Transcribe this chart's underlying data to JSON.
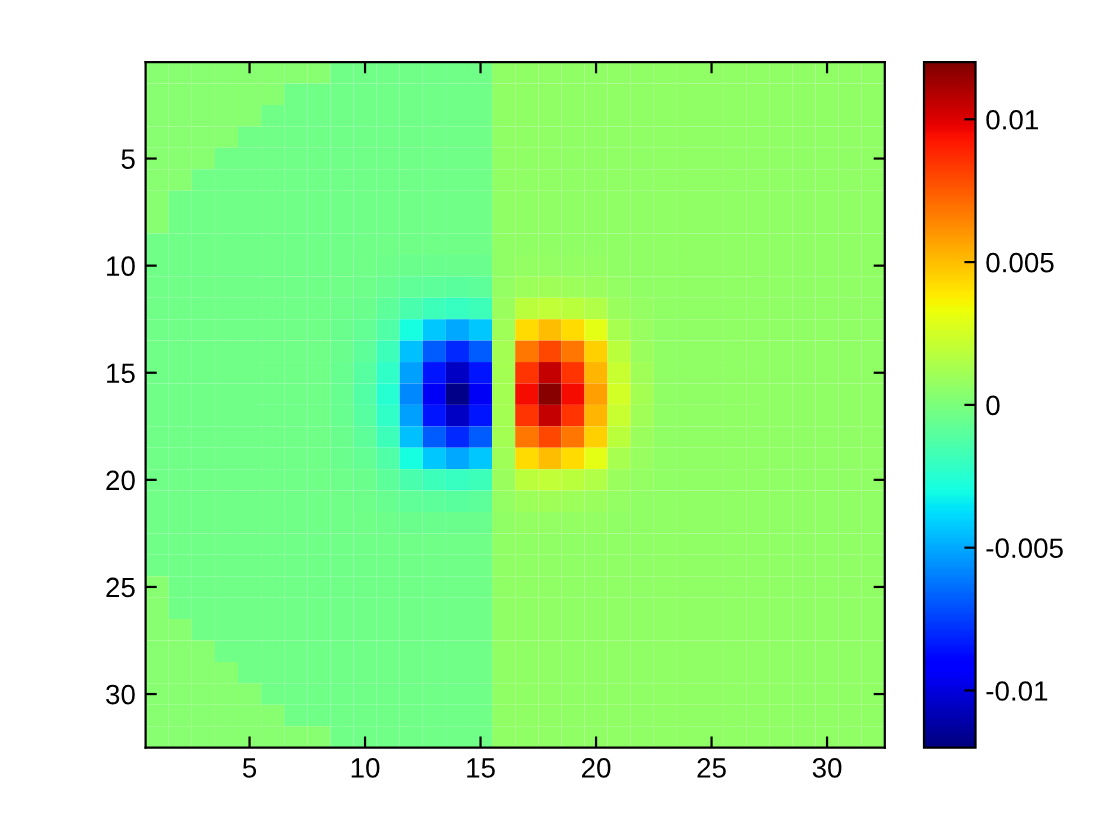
{
  "chart_data": {
    "type": "heatmap",
    "x": [
      1,
      2,
      3,
      4,
      5,
      6,
      7,
      8,
      9,
      10,
      11,
      12,
      13,
      14,
      15,
      16,
      17,
      18,
      19,
      20,
      21,
      22,
      23,
      24,
      25,
      26,
      27,
      28,
      29,
      30,
      31,
      32
    ],
    "y": [
      1,
      2,
      3,
      4,
      5,
      6,
      7,
      8,
      9,
      10,
      11,
      12,
      13,
      14,
      15,
      16,
      17,
      18,
      19,
      20,
      21,
      22,
      23,
      24,
      25,
      26,
      27,
      28,
      29,
      30,
      31,
      32
    ],
    "xlim": [
      0.5,
      32.5
    ],
    "ylim": [
      32.5,
      0.5
    ],
    "xticks": [
      5,
      10,
      15,
      20,
      25,
      30
    ],
    "yticks": [
      5,
      10,
      15,
      20,
      25,
      30
    ],
    "clim": [
      -0.012,
      0.012
    ],
    "cticks": [
      -0.01,
      -0.005,
      0,
      0.005,
      0.01
    ],
    "cells": [
      [
        0.0003,
        0.0003,
        0.0003,
        0.0003,
        0.0003,
        0.0003,
        0.0003,
        0.0003,
        -0.0003,
        -0.0003,
        -0.0003,
        -0.0003,
        -0.0003,
        -0.0003,
        -0.0003,
        0.0006,
        0.0006,
        0.0006,
        0.0006,
        0.0006,
        0.0006,
        0.0006,
        0.0006,
        0.0006,
        0.0006,
        0.0006,
        0.0006,
        0.0006,
        0.0006,
        0.0006,
        0.0006,
        0.0006
      ],
      [
        0.0003,
        0.0003,
        0.0003,
        0.0003,
        0.0003,
        0.0003,
        -0.0003,
        -0.0003,
        -0.0003,
        -0.0003,
        -0.0003,
        -0.0003,
        -0.0003,
        -0.0003,
        -0.0003,
        0.0006,
        0.0006,
        0.0006,
        0.0006,
        0.0006,
        0.0006,
        0.0006,
        0.0006,
        0.0006,
        0.0006,
        0.0006,
        0.0006,
        0.0006,
        0.0006,
        0.0006,
        0.0006,
        0.0006
      ],
      [
        0.0003,
        0.0003,
        0.0003,
        0.0003,
        0.0003,
        -0.0003,
        -0.0003,
        -0.0003,
        -0.0003,
        -0.0003,
        -0.0003,
        -0.0003,
        -0.0003,
        -0.0003,
        -0.0003,
        0.0006,
        0.0006,
        0.0006,
        0.0006,
        0.0006,
        0.0006,
        0.0006,
        0.0006,
        0.0006,
        0.0006,
        0.0006,
        0.0006,
        0.0006,
        0.0006,
        0.0006,
        0.0006,
        0.0006
      ],
      [
        0.0003,
        0.0003,
        0.0003,
        0.0003,
        -0.0003,
        -0.0003,
        -0.0003,
        -0.0003,
        -0.0003,
        -0.0003,
        -0.0003,
        -0.0003,
        -0.0003,
        -0.0003,
        -0.0003,
        0.0006,
        0.0006,
        0.0006,
        0.0006,
        0.0006,
        0.0006,
        0.0006,
        0.0006,
        0.0006,
        0.0006,
        0.0006,
        0.0006,
        0.0006,
        0.0006,
        0.0006,
        0.0006,
        0.0006
      ],
      [
        0.0003,
        0.0003,
        0.0003,
        -0.0003,
        -0.0003,
        -0.0003,
        -0.0003,
        -0.0003,
        -0.0003,
        -0.0003,
        -0.0003,
        -0.0003,
        -0.0003,
        -0.0003,
        -0.0003,
        0.0006,
        0.0006,
        0.0006,
        0.0006,
        0.0006,
        0.0006,
        0.0006,
        0.0006,
        0.0006,
        0.0006,
        0.0006,
        0.0006,
        0.0006,
        0.0006,
        0.0006,
        0.0006,
        0.0006
      ],
      [
        0.0003,
        0.0003,
        -0.0003,
        -0.0003,
        -0.0003,
        -0.0003,
        -0.0003,
        -0.0003,
        -0.0003,
        -0.0003,
        -0.0003,
        -0.0003,
        -0.0003,
        -0.0003,
        -0.0003,
        0.0006,
        0.0006,
        0.0006,
        0.0006,
        0.0006,
        0.0006,
        0.0006,
        0.0006,
        0.0006,
        0.0006,
        0.0006,
        0.0006,
        0.0006,
        0.0006,
        0.0006,
        0.0006,
        0.0006
      ],
      [
        0.0003,
        -0.0003,
        -0.0003,
        -0.0003,
        -0.0003,
        -0.0003,
        -0.0003,
        -0.0003,
        -0.0003,
        -0.0003,
        -0.0003,
        -0.0003,
        -0.0003,
        -0.0003,
        -0.0003,
        0.0006,
        0.0006,
        0.0006,
        0.0006,
        0.0006,
        0.0006,
        0.0006,
        0.0006,
        0.0006,
        0.0006,
        0.0006,
        0.0006,
        0.0006,
        0.0006,
        0.0006,
        0.0006,
        0.0006
      ],
      [
        0.0003,
        -0.0003,
        -0.0003,
        -0.0003,
        -0.0003,
        -0.0003,
        -0.0003,
        -0.0003,
        -0.0003,
        -0.0003,
        -0.0003,
        -0.0003,
        -0.0003,
        -0.0003,
        -0.0003,
        0.0006,
        0.0006,
        0.0006,
        0.0006,
        0.0006,
        0.0006,
        0.0006,
        0.0006,
        0.0006,
        0.0006,
        0.0006,
        0.0006,
        0.0006,
        0.0006,
        0.0006,
        0.0006,
        0.0006
      ],
      [
        -0.0003,
        -0.0003,
        -0.0003,
        -0.0003,
        -0.0003,
        -0.0003,
        -0.0003,
        -0.0003,
        -0.0003,
        -0.0003,
        -0.0003,
        -0.0003,
        -0.0003,
        -0.0003,
        -0.0003,
        0.0006,
        0.0006,
        0.0006,
        0.0006,
        0.0006,
        0.0006,
        0.0006,
        0.0006,
        0.0006,
        0.0006,
        0.0006,
        0.0006,
        0.0006,
        0.0006,
        0.0006,
        0.0006,
        0.0006
      ],
      [
        -0.0003,
        -0.0003,
        -0.0003,
        -0.0003,
        -0.0003,
        -0.0003,
        -0.0003,
        -0.0003,
        -0.0003,
        -0.0003,
        -0.0004,
        -0.0005,
        -0.0005,
        -0.0005,
        -0.0005,
        0.0006,
        0.0007,
        0.0007,
        0.0007,
        0.0007,
        0.0006,
        0.0006,
        0.0006,
        0.0006,
        0.0006,
        0.0006,
        0.0006,
        0.0006,
        0.0006,
        0.0006,
        0.0006,
        0.0006
      ],
      [
        -0.0003,
        -0.0003,
        -0.0003,
        -0.0003,
        -0.0003,
        -0.0003,
        -0.0003,
        -0.0003,
        -0.0003,
        -0.0004,
        -0.0006,
        -0.0008,
        -0.0009,
        -0.001,
        -0.0009,
        0.0007,
        0.001,
        0.0011,
        0.001,
        0.0009,
        0.0007,
        0.0006,
        0.0006,
        0.0006,
        0.0006,
        0.0006,
        0.0006,
        0.0006,
        0.0006,
        0.0006,
        0.0006,
        0.0006
      ],
      [
        -0.0003,
        -0.0003,
        -0.0003,
        -0.0003,
        -0.0003,
        -0.0003,
        -0.0003,
        -0.0003,
        -0.0004,
        -0.0005,
        -0.0009,
        -0.0015,
        -0.0018,
        -0.002,
        -0.0018,
        0.0009,
        0.0018,
        0.002,
        0.0018,
        0.0015,
        0.0009,
        0.0007,
        0.0006,
        0.0006,
        0.0006,
        0.0006,
        0.0006,
        0.0006,
        0.0006,
        0.0006,
        0.0006,
        0.0006
      ],
      [
        -0.0003,
        -0.0003,
        -0.0003,
        -0.0003,
        -0.0003,
        -0.0003,
        -0.0003,
        -0.0003,
        -0.0005,
        -0.0007,
        -0.0013,
        -0.003,
        -0.0043,
        -0.005,
        -0.0043,
        0.0011,
        0.0043,
        0.005,
        0.0043,
        0.003,
        0.0013,
        0.0008,
        0.0006,
        0.0006,
        0.0006,
        0.0006,
        0.0006,
        0.0006,
        0.0006,
        0.0006,
        0.0006,
        0.0006
      ],
      [
        -0.0003,
        -0.0003,
        -0.0003,
        -0.0003,
        -0.0003,
        -0.0003,
        -0.0003,
        -0.0003,
        -0.0005,
        -0.0009,
        -0.0018,
        -0.0045,
        -0.0068,
        -0.008,
        -0.0068,
        0.0012,
        0.0068,
        0.008,
        0.0068,
        0.0045,
        0.0018,
        0.0009,
        0.0006,
        0.0006,
        0.0006,
        0.0006,
        0.0006,
        0.0006,
        0.0006,
        0.0006,
        0.0006,
        0.0006
      ],
      [
        -0.0003,
        -0.0003,
        -0.0003,
        -0.0003,
        -0.0003,
        -0.0003,
        -0.0003,
        -0.0003,
        -0.0006,
        -0.0011,
        -0.0022,
        -0.0052,
        -0.0085,
        -0.0105,
        -0.0085,
        0.0012,
        0.0085,
        0.0105,
        0.0085,
        0.0052,
        0.0022,
        0.0011,
        0.0006,
        0.0006,
        0.0006,
        0.0006,
        0.0006,
        0.0006,
        0.0006,
        0.0006,
        0.0006,
        0.0006
      ],
      [
        -0.0003,
        -0.0003,
        -0.0003,
        -0.0003,
        -0.0003,
        -0.0003,
        -0.0003,
        -0.0003,
        -0.0006,
        -0.0012,
        -0.0025,
        -0.0058,
        -0.0095,
        -0.0118,
        -0.0095,
        0.0012,
        0.0095,
        0.0118,
        0.0095,
        0.0058,
        0.0025,
        0.0012,
        0.0006,
        0.0006,
        0.0006,
        0.0006,
        0.0006,
        0.0006,
        0.0006,
        0.0006,
        0.0006,
        0.0006
      ],
      [
        -0.0003,
        -0.0003,
        -0.0003,
        -0.0003,
        -0.0003,
        -0.0003,
        -0.0003,
        -0.0003,
        -0.0006,
        -0.0011,
        -0.0022,
        -0.0052,
        -0.0085,
        -0.0105,
        -0.0085,
        0.0012,
        0.0085,
        0.0105,
        0.0085,
        0.0052,
        0.0022,
        0.0011,
        0.0006,
        0.0006,
        0.0006,
        0.0006,
        0.0006,
        0.0006,
        0.0006,
        0.0006,
        0.0006,
        0.0006
      ],
      [
        -0.0003,
        -0.0003,
        -0.0003,
        -0.0003,
        -0.0003,
        -0.0003,
        -0.0003,
        -0.0003,
        -0.0005,
        -0.0009,
        -0.0018,
        -0.0045,
        -0.0068,
        -0.008,
        -0.0068,
        0.0012,
        0.0068,
        0.008,
        0.0068,
        0.0045,
        0.0018,
        0.0009,
        0.0006,
        0.0006,
        0.0006,
        0.0006,
        0.0006,
        0.0006,
        0.0006,
        0.0006,
        0.0006,
        0.0006
      ],
      [
        -0.0003,
        -0.0003,
        -0.0003,
        -0.0003,
        -0.0003,
        -0.0003,
        -0.0003,
        -0.0003,
        -0.0005,
        -0.0007,
        -0.0013,
        -0.003,
        -0.0043,
        -0.005,
        -0.0043,
        0.0011,
        0.0043,
        0.005,
        0.0043,
        0.003,
        0.0013,
        0.0008,
        0.0006,
        0.0006,
        0.0006,
        0.0006,
        0.0006,
        0.0006,
        0.0006,
        0.0006,
        0.0006,
        0.0006
      ],
      [
        -0.0003,
        -0.0003,
        -0.0003,
        -0.0003,
        -0.0003,
        -0.0003,
        -0.0003,
        -0.0003,
        -0.0004,
        -0.0005,
        -0.0009,
        -0.0015,
        -0.0018,
        -0.002,
        -0.0018,
        0.0009,
        0.0018,
        0.002,
        0.0018,
        0.0015,
        0.0009,
        0.0007,
        0.0006,
        0.0006,
        0.0006,
        0.0006,
        0.0006,
        0.0006,
        0.0006,
        0.0006,
        0.0006,
        0.0006
      ],
      [
        -0.0003,
        -0.0003,
        -0.0003,
        -0.0003,
        -0.0003,
        -0.0003,
        -0.0003,
        -0.0003,
        -0.0003,
        -0.0004,
        -0.0006,
        -0.0008,
        -0.0009,
        -0.001,
        -0.0009,
        0.0007,
        0.001,
        0.0011,
        0.001,
        0.0009,
        0.0007,
        0.0006,
        0.0006,
        0.0006,
        0.0006,
        0.0006,
        0.0006,
        0.0006,
        0.0006,
        0.0006,
        0.0006,
        0.0006
      ],
      [
        -0.0003,
        -0.0003,
        -0.0003,
        -0.0003,
        -0.0003,
        -0.0003,
        -0.0003,
        -0.0003,
        -0.0003,
        -0.0003,
        -0.0004,
        -0.0005,
        -0.0005,
        -0.0005,
        -0.0005,
        0.0006,
        0.0007,
        0.0007,
        0.0007,
        0.0007,
        0.0006,
        0.0006,
        0.0006,
        0.0006,
        0.0006,
        0.0006,
        0.0006,
        0.0006,
        0.0006,
        0.0006,
        0.0006,
        0.0006
      ],
      [
        -0.0003,
        -0.0003,
        -0.0003,
        -0.0003,
        -0.0003,
        -0.0003,
        -0.0003,
        -0.0003,
        -0.0003,
        -0.0003,
        -0.0003,
        -0.0003,
        -0.0003,
        -0.0003,
        -0.0003,
        0.0006,
        0.0006,
        0.0006,
        0.0006,
        0.0006,
        0.0006,
        0.0006,
        0.0006,
        0.0006,
        0.0006,
        0.0006,
        0.0006,
        0.0006,
        0.0006,
        0.0006,
        0.0006,
        0.0006
      ],
      [
        -0.0003,
        -0.0003,
        -0.0003,
        -0.0003,
        -0.0003,
        -0.0003,
        -0.0003,
        -0.0003,
        -0.0003,
        -0.0003,
        -0.0003,
        -0.0003,
        -0.0003,
        -0.0003,
        -0.0003,
        0.0006,
        0.0006,
        0.0006,
        0.0006,
        0.0006,
        0.0006,
        0.0006,
        0.0006,
        0.0006,
        0.0006,
        0.0006,
        0.0006,
        0.0006,
        0.0006,
        0.0006,
        0.0006,
        0.0006
      ],
      [
        0.0003,
        -0.0003,
        -0.0003,
        -0.0003,
        -0.0003,
        -0.0003,
        -0.0003,
        -0.0003,
        -0.0003,
        -0.0003,
        -0.0003,
        -0.0003,
        -0.0003,
        -0.0003,
        -0.0003,
        0.0006,
        0.0006,
        0.0006,
        0.0006,
        0.0006,
        0.0006,
        0.0006,
        0.0006,
        0.0006,
        0.0006,
        0.0006,
        0.0006,
        0.0006,
        0.0006,
        0.0006,
        0.0006,
        0.0006
      ],
      [
        0.0003,
        -0.0003,
        -0.0003,
        -0.0003,
        -0.0003,
        -0.0003,
        -0.0003,
        -0.0003,
        -0.0003,
        -0.0003,
        -0.0003,
        -0.0003,
        -0.0003,
        -0.0003,
        -0.0003,
        0.0006,
        0.0006,
        0.0006,
        0.0006,
        0.0006,
        0.0006,
        0.0006,
        0.0006,
        0.0006,
        0.0006,
        0.0006,
        0.0006,
        0.0006,
        0.0006,
        0.0006,
        0.0006,
        0.0006
      ],
      [
        0.0003,
        0.0003,
        -0.0003,
        -0.0003,
        -0.0003,
        -0.0003,
        -0.0003,
        -0.0003,
        -0.0003,
        -0.0003,
        -0.0003,
        -0.0003,
        -0.0003,
        -0.0003,
        -0.0003,
        0.0006,
        0.0006,
        0.0006,
        0.0006,
        0.0006,
        0.0006,
        0.0006,
        0.0006,
        0.0006,
        0.0006,
        0.0006,
        0.0006,
        0.0006,
        0.0006,
        0.0006,
        0.0006,
        0.0006
      ],
      [
        0.0003,
        0.0003,
        0.0003,
        -0.0003,
        -0.0003,
        -0.0003,
        -0.0003,
        -0.0003,
        -0.0003,
        -0.0003,
        -0.0003,
        -0.0003,
        -0.0003,
        -0.0003,
        -0.0003,
        0.0006,
        0.0006,
        0.0006,
        0.0006,
        0.0006,
        0.0006,
        0.0006,
        0.0006,
        0.0006,
        0.0006,
        0.0006,
        0.0006,
        0.0006,
        0.0006,
        0.0006,
        0.0006,
        0.0006
      ],
      [
        0.0003,
        0.0003,
        0.0003,
        0.0003,
        -0.0003,
        -0.0003,
        -0.0003,
        -0.0003,
        -0.0003,
        -0.0003,
        -0.0003,
        -0.0003,
        -0.0003,
        -0.0003,
        -0.0003,
        0.0006,
        0.0006,
        0.0006,
        0.0006,
        0.0006,
        0.0006,
        0.0006,
        0.0006,
        0.0006,
        0.0006,
        0.0006,
        0.0006,
        0.0006,
        0.0006,
        0.0006,
        0.0006,
        0.0006
      ],
      [
        0.0003,
        0.0003,
        0.0003,
        0.0003,
        0.0003,
        -0.0003,
        -0.0003,
        -0.0003,
        -0.0003,
        -0.0003,
        -0.0003,
        -0.0003,
        -0.0003,
        -0.0003,
        -0.0003,
        0.0006,
        0.0006,
        0.0006,
        0.0006,
        0.0006,
        0.0006,
        0.0006,
        0.0006,
        0.0006,
        0.0006,
        0.0006,
        0.0006,
        0.0006,
        0.0006,
        0.0006,
        0.0006,
        0.0006
      ],
      [
        0.0003,
        0.0003,
        0.0003,
        0.0003,
        0.0003,
        0.0003,
        -0.0003,
        -0.0003,
        -0.0003,
        -0.0003,
        -0.0003,
        -0.0003,
        -0.0003,
        -0.0003,
        -0.0003,
        0.0006,
        0.0006,
        0.0006,
        0.0006,
        0.0006,
        0.0006,
        0.0006,
        0.0006,
        0.0006,
        0.0006,
        0.0006,
        0.0006,
        0.0006,
        0.0006,
        0.0006,
        0.0006,
        0.0006
      ],
      [
        0.0003,
        0.0003,
        0.0003,
        0.0003,
        0.0003,
        0.0003,
        0.0003,
        0.0003,
        -0.0003,
        -0.0003,
        -0.0003,
        -0.0003,
        -0.0003,
        -0.0003,
        -0.0003,
        0.0006,
        0.0006,
        0.0006,
        0.0006,
        0.0006,
        0.0006,
        0.0006,
        0.0006,
        0.0006,
        0.0006,
        0.0006,
        0.0006,
        0.0006,
        0.0006,
        0.0006,
        0.0006,
        0.0006
      ]
    ]
  }
}
